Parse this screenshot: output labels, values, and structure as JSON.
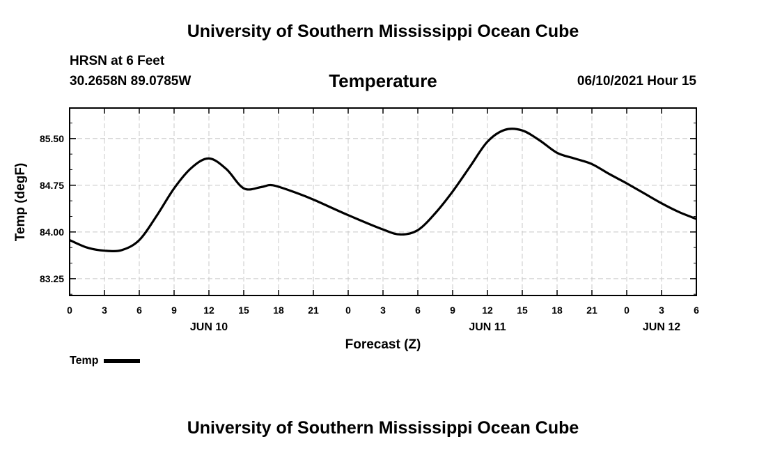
{
  "header": {
    "title_top": "University of Southern Mississippi Ocean Cube",
    "title_bottom": "University of Southern Mississippi Ocean Cube",
    "station": "HRSN at 6 Feet",
    "coords": "30.2658N  89.0785W",
    "datetime": "06/10/2021 Hour 15"
  },
  "chart_data": {
    "type": "line",
    "title": "Temperature",
    "xlabel": "Forecast (Z)",
    "ylabel": "Temp (degF)",
    "xlim": [
      0,
      54
    ],
    "ylim": [
      82.98,
      85.99
    ],
    "y_ticks": [
      83.25,
      84.0,
      84.75,
      85.5
    ],
    "y_tick_labels": [
      "83.25",
      "84.00",
      "84.75",
      "85.50"
    ],
    "x_ticks": [
      0,
      3,
      6,
      9,
      12,
      15,
      18,
      21,
      24,
      27,
      30,
      33,
      36,
      39,
      42,
      45,
      48,
      51,
      54
    ],
    "x_tick_labels": [
      "0",
      "3",
      "6",
      "9",
      "12",
      "15",
      "18",
      "21",
      "0",
      "3",
      "6",
      "9",
      "12",
      "15",
      "18",
      "21",
      "0",
      "3",
      "6"
    ],
    "day_labels": [
      {
        "x": 12,
        "label": "JUN 10"
      },
      {
        "x": 36,
        "label": "JUN 11"
      },
      {
        "x": 51,
        "label": "JUN 12"
      }
    ],
    "grid": true,
    "legend": {
      "position": "bottom-left",
      "label": "Temp"
    },
    "series": [
      {
        "name": "Temp",
        "x": [
          0,
          1.5,
          3,
          4.5,
          6,
          7.5,
          9,
          10.5,
          12,
          13.5,
          15,
          16.5,
          17.5,
          19.5,
          21,
          24,
          27,
          28.5,
          30,
          31.5,
          33,
          34.5,
          36,
          37.5,
          39,
          40.5,
          42,
          43.5,
          45,
          46.5,
          48,
          49.5,
          51,
          52.5,
          54
        ],
        "values": [
          83.87,
          83.75,
          83.7,
          83.71,
          83.87,
          84.26,
          84.7,
          85.03,
          85.18,
          85.01,
          84.7,
          84.72,
          84.75,
          84.63,
          84.52,
          84.27,
          84.04,
          83.96,
          84.03,
          84.3,
          84.65,
          85.05,
          85.45,
          85.64,
          85.63,
          85.47,
          85.27,
          85.18,
          85.09,
          84.93,
          84.78,
          84.62,
          84.46,
          84.32,
          84.21
        ]
      }
    ]
  }
}
